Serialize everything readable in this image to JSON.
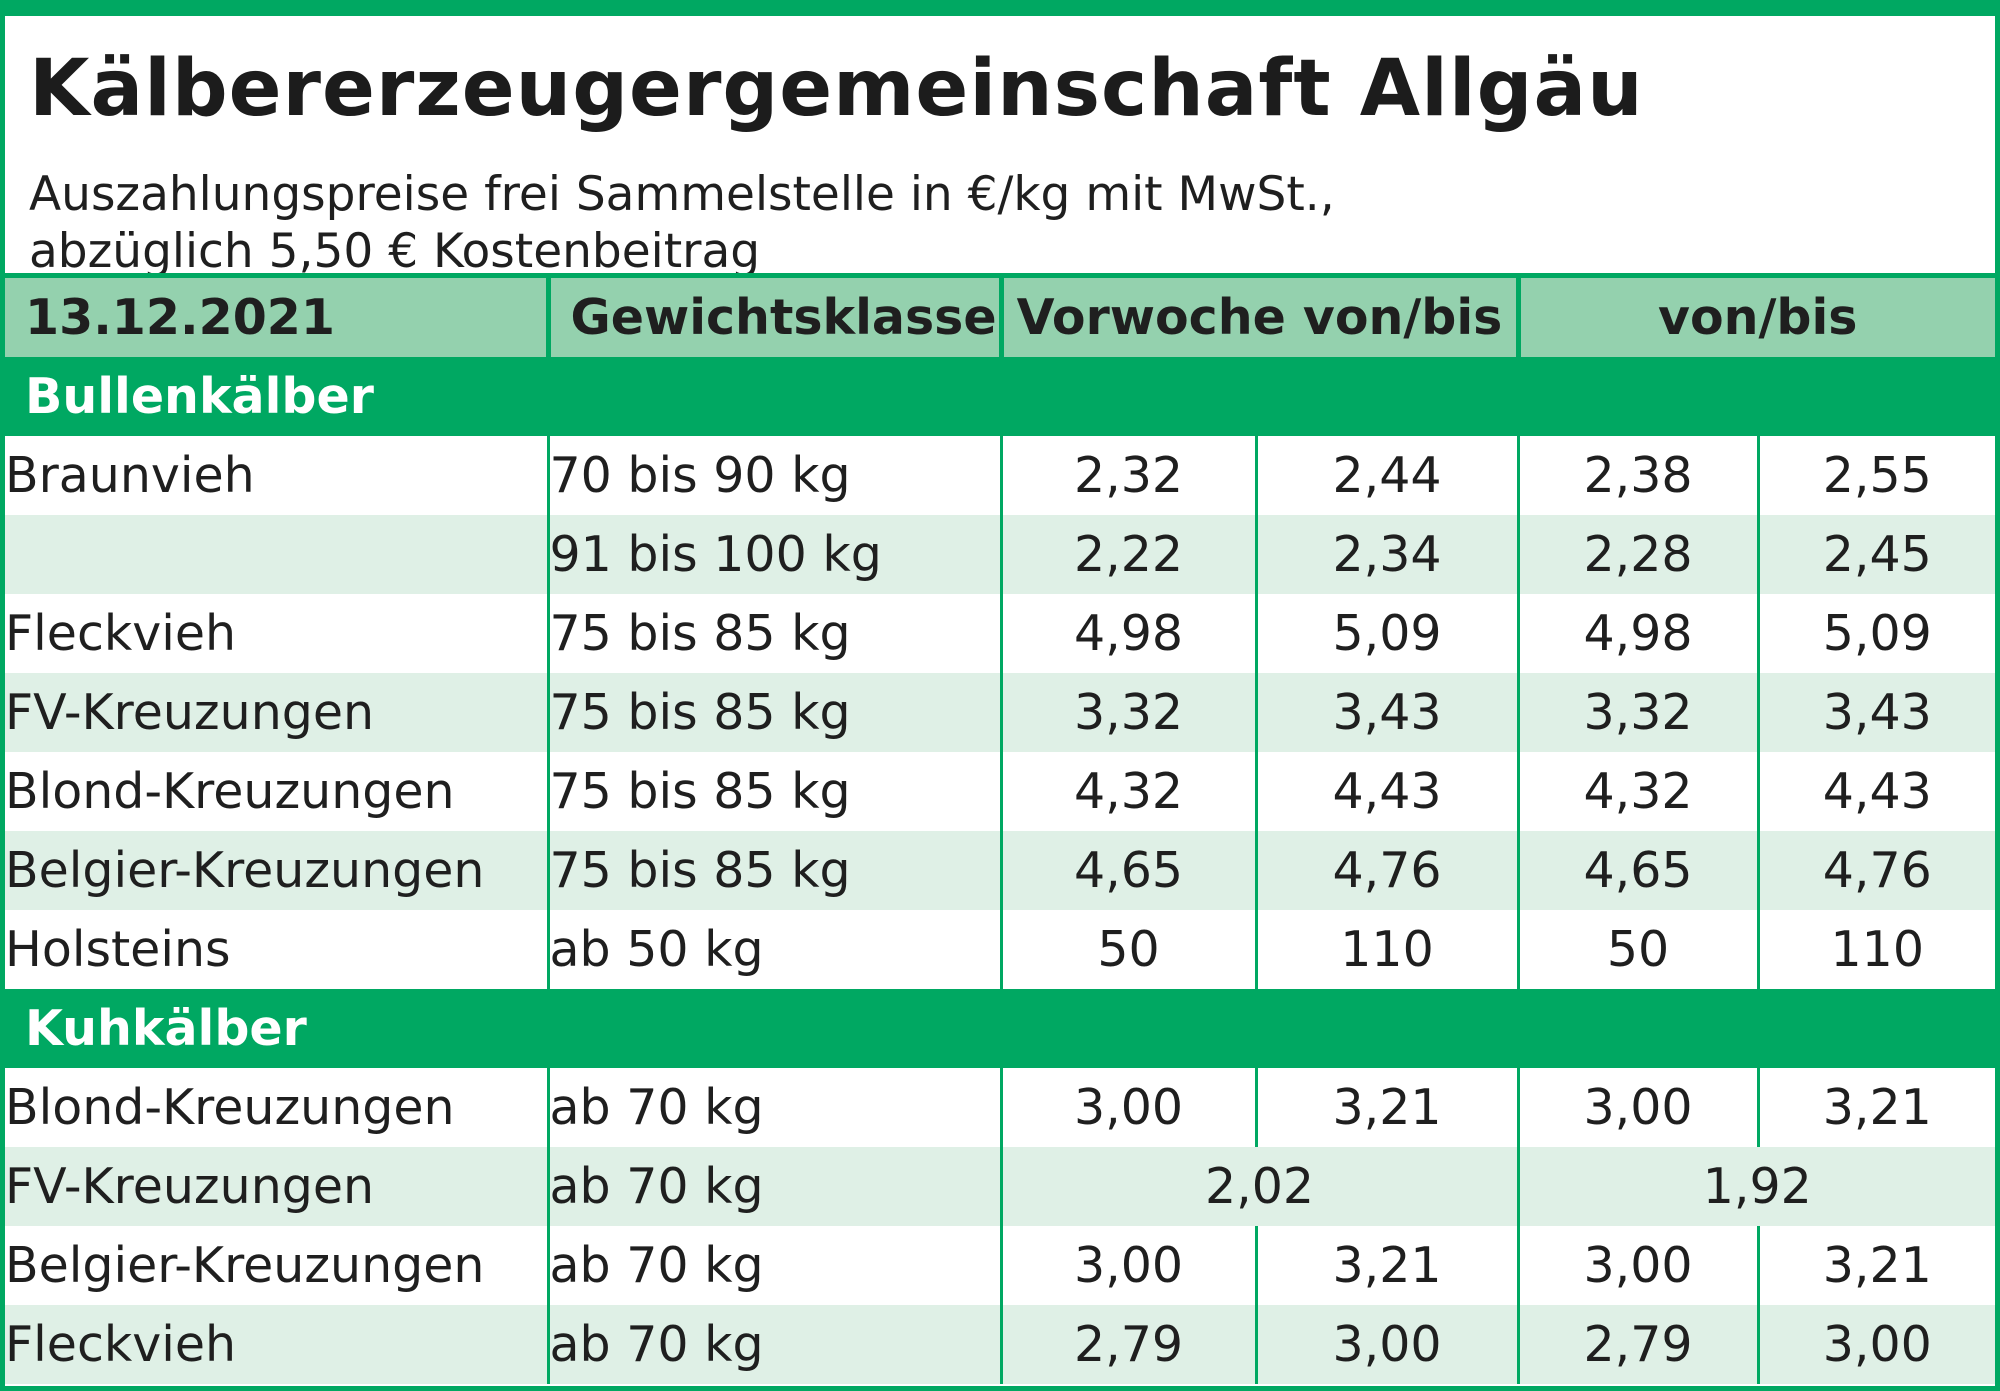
{
  "title": "Kälbererzeugergemeinschaft Allgäu",
  "subtitle_line1": "Auszahlungspreise frei Sammelstelle in €/kg mit MwSt.,",
  "subtitle_line2": "abzüglich 5,50 € Kostenbeitrag",
  "header": {
    "date": "13.12.2021",
    "weight_class": "Gewichtsklasse",
    "previous_week": "Vorwoche von/bis",
    "current": "von/bis"
  },
  "sections": [
    {
      "name": "Bullenkälber",
      "rows": [
        {
          "breed": "Braunvieh",
          "weight": "70 bis 90 kg",
          "prev_from": "2,32",
          "prev_to": "2,44",
          "cur_from": "2,38",
          "cur_to": "2,55"
        },
        {
          "breed": "",
          "weight": "91 bis 100 kg",
          "prev_from": "2,22",
          "prev_to": "2,34",
          "cur_from": "2,28",
          "cur_to": "2,45"
        },
        {
          "breed": "Fleckvieh",
          "weight": "75 bis 85 kg",
          "prev_from": "4,98",
          "prev_to": "5,09",
          "cur_from": "4,98",
          "cur_to": "5,09"
        },
        {
          "breed": "FV-Kreuzungen",
          "weight": "75 bis 85 kg",
          "prev_from": "3,32",
          "prev_to": "3,43",
          "cur_from": "3,32",
          "cur_to": "3,43"
        },
        {
          "breed": "Blond-Kreuzungen",
          "weight": "75 bis 85 kg",
          "prev_from": "4,32",
          "prev_to": "4,43",
          "cur_from": "4,32",
          "cur_to": "4,43"
        },
        {
          "breed": "Belgier-Kreuzungen",
          "weight": "75 bis 85 kg",
          "prev_from": "4,65",
          "prev_to": "4,76",
          "cur_from": "4,65",
          "cur_to": "4,76"
        },
        {
          "breed": "Holsteins",
          "weight": "ab 50 kg",
          "prev_from": "50",
          "prev_to": "110",
          "cur_from": "50",
          "cur_to": "110"
        }
      ]
    },
    {
      "name": "Kuhkälber",
      "rows": [
        {
          "breed": "Blond-Kreuzungen",
          "weight": "ab 70 kg",
          "prev_from": "3,00",
          "prev_to": "3,21",
          "cur_from": "3,00",
          "cur_to": "3,21"
        },
        {
          "breed": "FV-Kreuzungen",
          "weight": "ab 70 kg",
          "prev_single": "2,02",
          "cur_single": "1,92"
        },
        {
          "breed": "Belgier-Kreuzungen",
          "weight": "ab 70 kg",
          "prev_from": "3,00",
          "prev_to": "3,21",
          "cur_from": "3,00",
          "cur_to": "3,21"
        },
        {
          "breed": "Fleckvieh",
          "weight": "ab 70 kg",
          "prev_from": "2,79",
          "prev_to": "3,00",
          "cur_from": "2,79",
          "cur_to": "3,00"
        }
      ]
    }
  ],
  "colors": {
    "accent_green": "#00a862",
    "header_green": "#94d1ae",
    "row_alt": "#dff0e6"
  }
}
